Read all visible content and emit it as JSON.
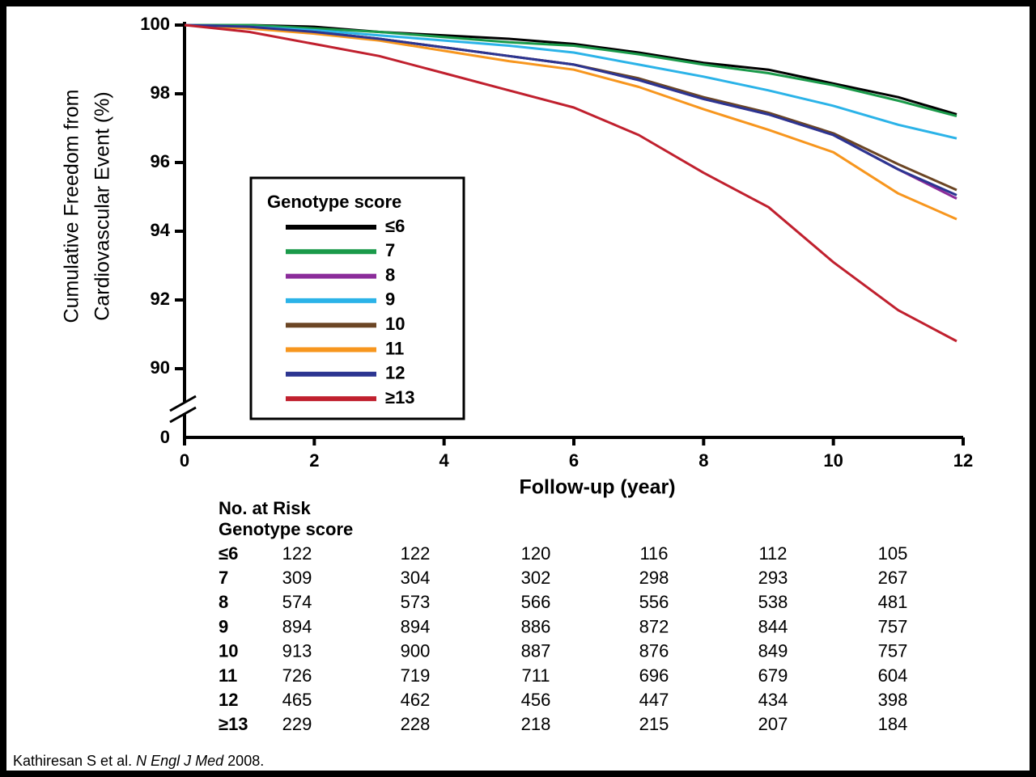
{
  "chart_data": {
    "type": "line",
    "y_label_lines": [
      "Cumulative Freedom from",
      "Cardiovascular Event (%)"
    ],
    "x_label": "Follow-up (year)",
    "xlim": [
      0,
      12
    ],
    "xticks": [
      0,
      2,
      4,
      6,
      8,
      10,
      12
    ],
    "ylim": [
      90,
      100
    ],
    "yticks": [
      90,
      92,
      94,
      96,
      98,
      100
    ],
    "axis_break_label": "0",
    "legend_title": "Genotype score",
    "x": [
      0,
      1,
      2,
      3,
      4,
      5,
      6,
      7,
      8,
      9,
      10,
      11,
      11.9
    ],
    "series": [
      {
        "name": "≤6",
        "color": "#000000",
        "values": [
          100,
          100,
          99.95,
          99.8,
          99.7,
          99.6,
          99.45,
          99.2,
          98.9,
          98.7,
          98.3,
          97.9,
          97.4
        ]
      },
      {
        "name": "7",
        "color": "#1a9a4a",
        "values": [
          100,
          100,
          99.9,
          99.8,
          99.65,
          99.5,
          99.4,
          99.15,
          98.85,
          98.6,
          98.25,
          97.8,
          97.35
        ]
      },
      {
        "name": "8",
        "color": "#8b2c9a",
        "values": [
          100,
          99.95,
          99.8,
          99.6,
          99.35,
          99.1,
          98.85,
          98.4,
          97.85,
          97.4,
          96.8,
          95.8,
          94.95
        ]
      },
      {
        "name": "9",
        "color": "#2bb3e8",
        "values": [
          100,
          99.95,
          99.85,
          99.7,
          99.55,
          99.4,
          99.2,
          98.85,
          98.5,
          98.1,
          97.65,
          97.1,
          96.7
        ]
      },
      {
        "name": "10",
        "color": "#6b4524",
        "values": [
          100,
          99.9,
          99.8,
          99.6,
          99.35,
          99.1,
          98.85,
          98.45,
          97.9,
          97.45,
          96.85,
          95.95,
          95.2
        ]
      },
      {
        "name": "11",
        "color": "#f7961e",
        "values": [
          100,
          99.9,
          99.75,
          99.55,
          99.25,
          98.95,
          98.7,
          98.2,
          97.55,
          96.95,
          96.3,
          95.1,
          94.35
        ]
      },
      {
        "name": "12",
        "color": "#2c3591",
        "values": [
          100,
          99.95,
          99.8,
          99.6,
          99.35,
          99.1,
          98.85,
          98.4,
          97.85,
          97.4,
          96.8,
          95.8,
          95.05
        ]
      },
      {
        "name": "≥13",
        "color": "#c0202e",
        "values": [
          100,
          99.8,
          99.45,
          99.1,
          98.6,
          98.1,
          97.6,
          96.8,
          95.7,
          94.7,
          93.1,
          91.7,
          90.8
        ]
      }
    ]
  },
  "risk_table": {
    "title": "No. at Risk",
    "subtitle": "Genotype score",
    "rows": [
      {
        "label": "≤6",
        "values": [
          122,
          122,
          120,
          116,
          112,
          105
        ]
      },
      {
        "label": "7",
        "values": [
          309,
          304,
          302,
          298,
          293,
          267
        ]
      },
      {
        "label": "8",
        "values": [
          574,
          573,
          566,
          556,
          538,
          481
        ]
      },
      {
        "label": "9",
        "values": [
          894,
          894,
          886,
          872,
          844,
          757
        ]
      },
      {
        "label": "10",
        "values": [
          913,
          900,
          887,
          876,
          849,
          757
        ]
      },
      {
        "label": "11",
        "values": [
          726,
          719,
          711,
          696,
          679,
          604
        ]
      },
      {
        "label": "12",
        "values": [
          465,
          462,
          456,
          447,
          434,
          398
        ]
      },
      {
        "label": "≥13",
        "values": [
          229,
          228,
          218,
          215,
          207,
          184
        ]
      }
    ]
  },
  "citation": {
    "authors": "Kathiresan S et al.",
    "journal": "N Engl J Med",
    "year": "2008."
  }
}
